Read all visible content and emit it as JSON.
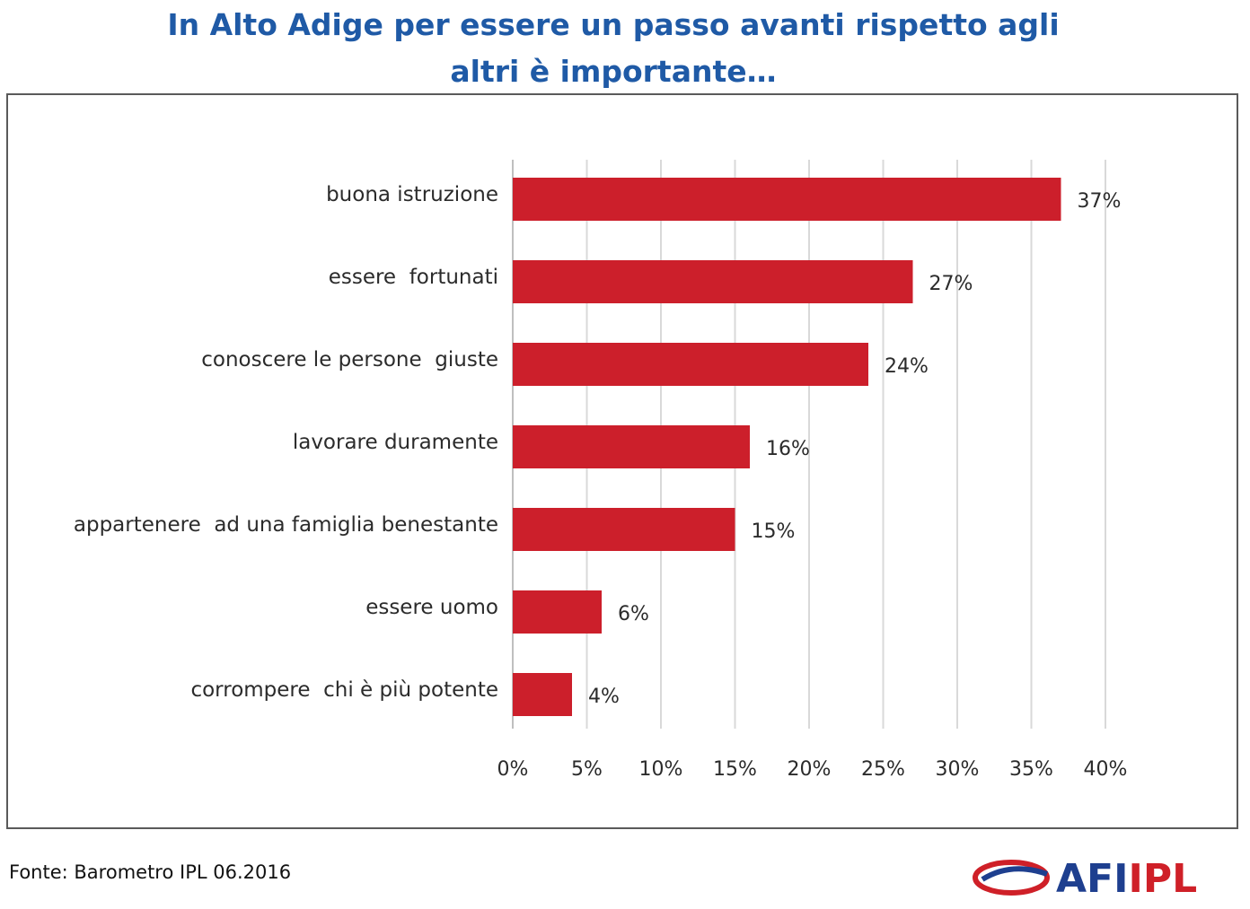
{
  "title": "In Alto Adige per essere un passo avanti rispetto agli altri è importante…",
  "source": "Fonte: Barometro IPL 06.2016",
  "logo": {
    "text_part1": "AFI",
    "text_part2": "IPL",
    "colors": {
      "blue": "#1e3f8f",
      "red": "#cf2028"
    }
  },
  "chart_data": {
    "type": "bar",
    "orientation": "horizontal",
    "title": "In Alto Adige per essere un passo avanti rispetto agli altri è importante…",
    "categories": [
      "buona istruzione",
      "essere  fortunati",
      "conoscere le persone  giuste",
      "lavorare duramente",
      "appartenere  ad una famiglia benestante",
      "essere uomo",
      "corrompere  chi è più potente"
    ],
    "values": [
      37,
      27,
      24,
      16,
      15,
      6,
      4
    ],
    "value_labels": [
      "37%",
      "27%",
      "24%",
      "16%",
      "15%",
      "6%",
      "4%"
    ],
    "xlim": [
      0,
      40
    ],
    "ticks": [
      0,
      5,
      10,
      15,
      20,
      25,
      30,
      35,
      40
    ],
    "tick_labels": [
      "0%",
      "5%",
      "10%",
      "15%",
      "20%",
      "25%",
      "30%",
      "35%",
      "40%"
    ],
    "xlabel": "",
    "ylabel": "",
    "grid": true,
    "bar_color": "#cc1f2b",
    "grid_color": "#d9d9d9"
  }
}
